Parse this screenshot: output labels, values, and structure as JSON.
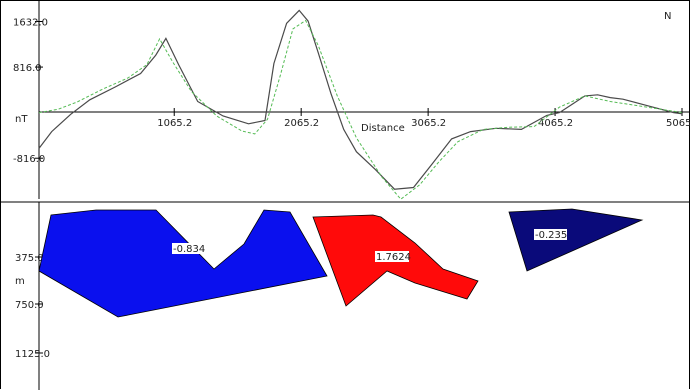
{
  "profile": {
    "y_ticks": [
      "1632.0",
      "816.0",
      "-816.0"
    ],
    "y_unit": "nT",
    "x_ticks": [
      "1065.2",
      "2065.2",
      "3065.2",
      "4065.2",
      "5065"
    ],
    "x_label": "Distance",
    "north_marker": "N"
  },
  "chart_data": {
    "type": "line",
    "xlabel": "Distance",
    "ylabel": "nT",
    "xlim": [
      0,
      5065
    ],
    "ylim": [
      -1600,
      1820
    ],
    "series": [
      {
        "color": "#4a4a4a",
        "dash": "none",
        "x": [
          0,
          100,
          250,
          400,
          600,
          800,
          920,
          1000,
          1100,
          1250,
          1450,
          1650,
          1780,
          1850,
          1950,
          2050,
          2120,
          2200,
          2300,
          2400,
          2500,
          2650,
          2800,
          2950,
          3100,
          3250,
          3400,
          3600,
          3800,
          4000,
          4100,
          4200,
          4300,
          4400,
          4500,
          4600,
          4800,
          5000,
          5065
        ],
        "y": [
          -640,
          -340,
          -30,
          230,
          460,
          700,
          1030,
          1330,
          860,
          200,
          -60,
          -200,
          -140,
          880,
          1600,
          1830,
          1640,
          1070,
          340,
          -300,
          -700,
          -1020,
          -1370,
          -1340,
          -910,
          -470,
          -340,
          -280,
          -300,
          -50,
          0,
          150,
          300,
          320,
          270,
          240,
          120,
          0,
          -20
        ]
      },
      {
        "color": "#55bb55",
        "dash": "3,2",
        "x": [
          0,
          150,
          300,
          500,
          700,
          850,
          950,
          1050,
          1200,
          1400,
          1600,
          1700,
          1800,
          1900,
          2000,
          2100,
          2200,
          2350,
          2500,
          2700,
          2850,
          3000,
          3150,
          3300,
          3500,
          3700,
          3900,
          4100,
          4300,
          4500,
          4700,
          4900,
          5065
        ],
        "y": [
          0,
          60,
          190,
          420,
          620,
          860,
          1320,
          920,
          380,
          -60,
          -330,
          -380,
          -120,
          660,
          1500,
          1650,
          1200,
          300,
          -450,
          -1150,
          -1550,
          -1290,
          -880,
          -520,
          -300,
          -260,
          -250,
          100,
          300,
          200,
          130,
          60,
          0
        ]
      }
    ]
  },
  "model": {
    "depth_ticks": [
      "375.0",
      "750.0",
      "1125.0"
    ],
    "depth_unit": "m",
    "bodies": [
      {
        "label": "-0.834",
        "fill": "#0a10ee"
      },
      {
        "label": "1.7624",
        "fill": "#ff0a0a"
      },
      {
        "label": "-0.235",
        "fill": "#0a0a7a"
      }
    ]
  }
}
